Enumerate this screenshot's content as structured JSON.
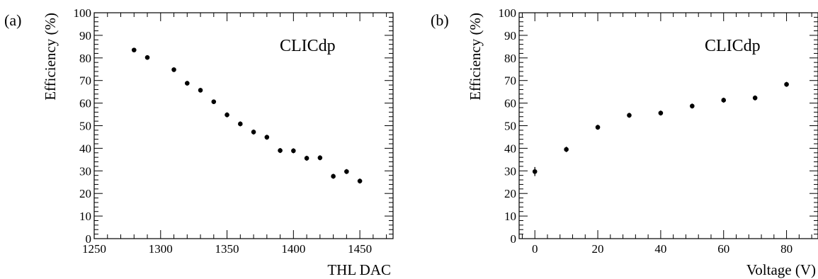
{
  "chart_data": [
    {
      "type": "scatter",
      "panel_label": "(a)",
      "annotation": "CLICdp",
      "xlabel": "THL DAC",
      "ylabel": "Efficiency (%)",
      "xlim": [
        1250,
        1475
      ],
      "ylim": [
        0,
        100
      ],
      "x_ticks": [
        1250,
        1300,
        1350,
        1400,
        1450
      ],
      "y_ticks": [
        0,
        10,
        20,
        30,
        40,
        50,
        60,
        70,
        80,
        90,
        100
      ],
      "x": [
        1280,
        1290,
        1310,
        1320,
        1330,
        1340,
        1350,
        1360,
        1370,
        1380,
        1390,
        1400,
        1410,
        1420,
        1430,
        1440,
        1450
      ],
      "y": [
        83.5,
        80.2,
        74.8,
        68.8,
        65.7,
        60.6,
        54.8,
        50.8,
        47.2,
        44.9,
        39.0,
        38.9,
        35.6,
        35.8,
        27.6,
        29.7,
        25.5
      ],
      "yerr": [
        0.9,
        0.9,
        1.0,
        1.0,
        1.0,
        1.0,
        1.1,
        1.1,
        1.1,
        1.1,
        1.1,
        1.1,
        1.1,
        1.1,
        1.1,
        1.1,
        1.1
      ]
    },
    {
      "type": "scatter",
      "panel_label": "(b)",
      "annotation": "CLICdp",
      "xlabel": "Voltage (V)",
      "ylabel": "Efficiency (%)",
      "xlim": [
        -5,
        90
      ],
      "ylim": [
        0,
        100
      ],
      "x_ticks": [
        0,
        20,
        40,
        60,
        80
      ],
      "y_ticks": [
        0,
        10,
        20,
        30,
        40,
        50,
        60,
        70,
        80,
        90,
        100
      ],
      "x": [
        0,
        10,
        20,
        30,
        40,
        50,
        60,
        70,
        80
      ],
      "y": [
        29.7,
        39.5,
        49.3,
        54.6,
        55.6,
        58.7,
        61.3,
        62.3,
        68.3
      ],
      "yerr": [
        2.0,
        1.2,
        1.1,
        1.1,
        1.1,
        1.1,
        1.1,
        1.1,
        1.1
      ]
    }
  ]
}
